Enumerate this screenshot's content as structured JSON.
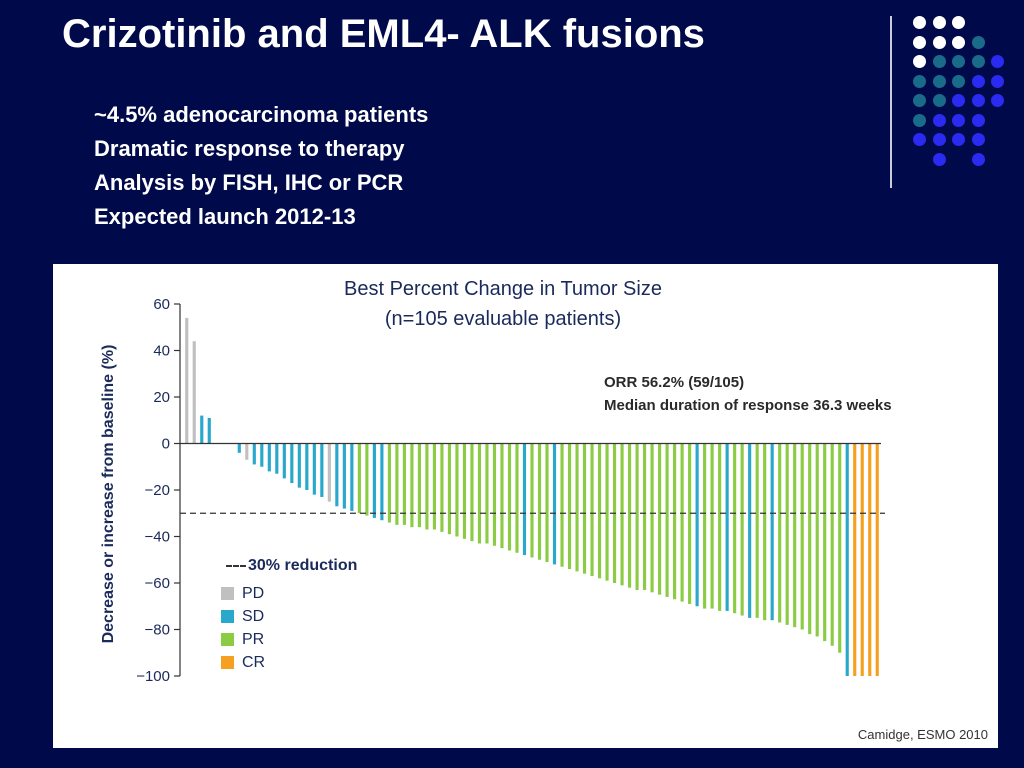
{
  "slide": {
    "title": "Crizotinib and EML4- ALK fusions",
    "bullets": [
      "~4.5% adenocarcinoma patients",
      "Dramatic response to therapy",
      "Analysis by FISH, IHC or PCR",
      "Expected launch 2012-13"
    ]
  },
  "decor": {
    "dot_colors": {
      "white": "#ffffff",
      "teal": "#1a6b8a",
      "blue": "#2a2af0"
    },
    "divider_color": "#c9cbd8"
  },
  "source": "Camidge, ESMO 2010",
  "chart_data": {
    "type": "bar",
    "title": "Best Percent Change in Tumor Size",
    "subtitle": "(n=105 evaluable patients)",
    "annotations": [
      "ORR 56.2% (59/105)",
      "Median duration of response 36.3 weeks"
    ],
    "ylabel": "Decrease or increase from baseline (%)",
    "ylim": [
      -100,
      60
    ],
    "yticks": [
      "60",
      "40",
      "20",
      "0",
      "−20",
      "−40",
      "−60",
      "−80",
      "−100"
    ],
    "ytick_values": [
      60,
      40,
      20,
      0,
      -20,
      -40,
      -60,
      -80,
      -100
    ],
    "reference_line": {
      "y": -30,
      "label": "30% reduction"
    },
    "legend": [
      {
        "code": "PD",
        "label": "PD",
        "color": "#c0c0c0"
      },
      {
        "code": "SD",
        "label": "SD",
        "color": "#29a8cc"
      },
      {
        "code": "PR",
        "label": "PR",
        "color": "#8ccc44"
      },
      {
        "code": "CR",
        "label": "CR",
        "color": "#f5a020"
      }
    ],
    "bars": [
      {
        "v": 54,
        "c": "PD"
      },
      {
        "v": 44,
        "c": "PD"
      },
      {
        "v": 12,
        "c": "SD"
      },
      {
        "v": 11,
        "c": "SD"
      },
      {
        "v": 0,
        "c": "SD"
      },
      {
        "v": 0,
        "c": "SD"
      },
      {
        "v": 0,
        "c": "SD"
      },
      {
        "v": -4,
        "c": "SD"
      },
      {
        "v": -7,
        "c": "PD"
      },
      {
        "v": -9,
        "c": "SD"
      },
      {
        "v": -10,
        "c": "SD"
      },
      {
        "v": -12,
        "c": "SD"
      },
      {
        "v": -13,
        "c": "SD"
      },
      {
        "v": -15,
        "c": "SD"
      },
      {
        "v": -17,
        "c": "SD"
      },
      {
        "v": -19,
        "c": "SD"
      },
      {
        "v": -20,
        "c": "SD"
      },
      {
        "v": -22,
        "c": "SD"
      },
      {
        "v": -23,
        "c": "SD"
      },
      {
        "v": -25,
        "c": "PD"
      },
      {
        "v": -27,
        "c": "SD"
      },
      {
        "v": -28,
        "c": "SD"
      },
      {
        "v": -29,
        "c": "SD"
      },
      {
        "v": -30,
        "c": "PR"
      },
      {
        "v": -31,
        "c": "PR"
      },
      {
        "v": -32,
        "c": "SD"
      },
      {
        "v": -33,
        "c": "SD"
      },
      {
        "v": -34,
        "c": "PR"
      },
      {
        "v": -35,
        "c": "PR"
      },
      {
        "v": -35,
        "c": "PR"
      },
      {
        "v": -36,
        "c": "PR"
      },
      {
        "v": -36,
        "c": "PR"
      },
      {
        "v": -37,
        "c": "PR"
      },
      {
        "v": -37,
        "c": "PR"
      },
      {
        "v": -38,
        "c": "PR"
      },
      {
        "v": -39,
        "c": "PR"
      },
      {
        "v": -40,
        "c": "PR"
      },
      {
        "v": -41,
        "c": "PR"
      },
      {
        "v": -42,
        "c": "PR"
      },
      {
        "v": -43,
        "c": "PR"
      },
      {
        "v": -43,
        "c": "PR"
      },
      {
        "v": -44,
        "c": "PR"
      },
      {
        "v": -45,
        "c": "PR"
      },
      {
        "v": -46,
        "c": "PR"
      },
      {
        "v": -47,
        "c": "PR"
      },
      {
        "v": -48,
        "c": "SD"
      },
      {
        "v": -49,
        "c": "PR"
      },
      {
        "v": -50,
        "c": "PR"
      },
      {
        "v": -51,
        "c": "PR"
      },
      {
        "v": -52,
        "c": "SD"
      },
      {
        "v": -53,
        "c": "PR"
      },
      {
        "v": -54,
        "c": "PR"
      },
      {
        "v": -55,
        "c": "PR"
      },
      {
        "v": -56,
        "c": "PR"
      },
      {
        "v": -57,
        "c": "PR"
      },
      {
        "v": -58,
        "c": "PR"
      },
      {
        "v": -59,
        "c": "PR"
      },
      {
        "v": -60,
        "c": "PR"
      },
      {
        "v": -61,
        "c": "PR"
      },
      {
        "v": -62,
        "c": "PR"
      },
      {
        "v": -63,
        "c": "PR"
      },
      {
        "v": -63,
        "c": "PR"
      },
      {
        "v": -64,
        "c": "PR"
      },
      {
        "v": -65,
        "c": "PR"
      },
      {
        "v": -66,
        "c": "PR"
      },
      {
        "v": -67,
        "c": "PR"
      },
      {
        "v": -68,
        "c": "PR"
      },
      {
        "v": -69,
        "c": "PR"
      },
      {
        "v": -70,
        "c": "SD"
      },
      {
        "v": -71,
        "c": "PR"
      },
      {
        "v": -71,
        "c": "PR"
      },
      {
        "v": -72,
        "c": "PR"
      },
      {
        "v": -72,
        "c": "SD"
      },
      {
        "v": -73,
        "c": "PR"
      },
      {
        "v": -74,
        "c": "PR"
      },
      {
        "v": -75,
        "c": "SD"
      },
      {
        "v": -75,
        "c": "PR"
      },
      {
        "v": -76,
        "c": "PR"
      },
      {
        "v": -76,
        "c": "SD"
      },
      {
        "v": -77,
        "c": "PR"
      },
      {
        "v": -78,
        "c": "PR"
      },
      {
        "v": -79,
        "c": "PR"
      },
      {
        "v": -80,
        "c": "PR"
      },
      {
        "v": -82,
        "c": "PR"
      },
      {
        "v": -83,
        "c": "PR"
      },
      {
        "v": -85,
        "c": "PR"
      },
      {
        "v": -87,
        "c": "PR"
      },
      {
        "v": -90,
        "c": "PR"
      },
      {
        "v": -100,
        "c": "SD"
      },
      {
        "v": -100,
        "c": "CR"
      },
      {
        "v": -100,
        "c": "CR"
      },
      {
        "v": -100,
        "c": "CR"
      },
      {
        "v": -100,
        "c": "CR"
      }
    ]
  }
}
